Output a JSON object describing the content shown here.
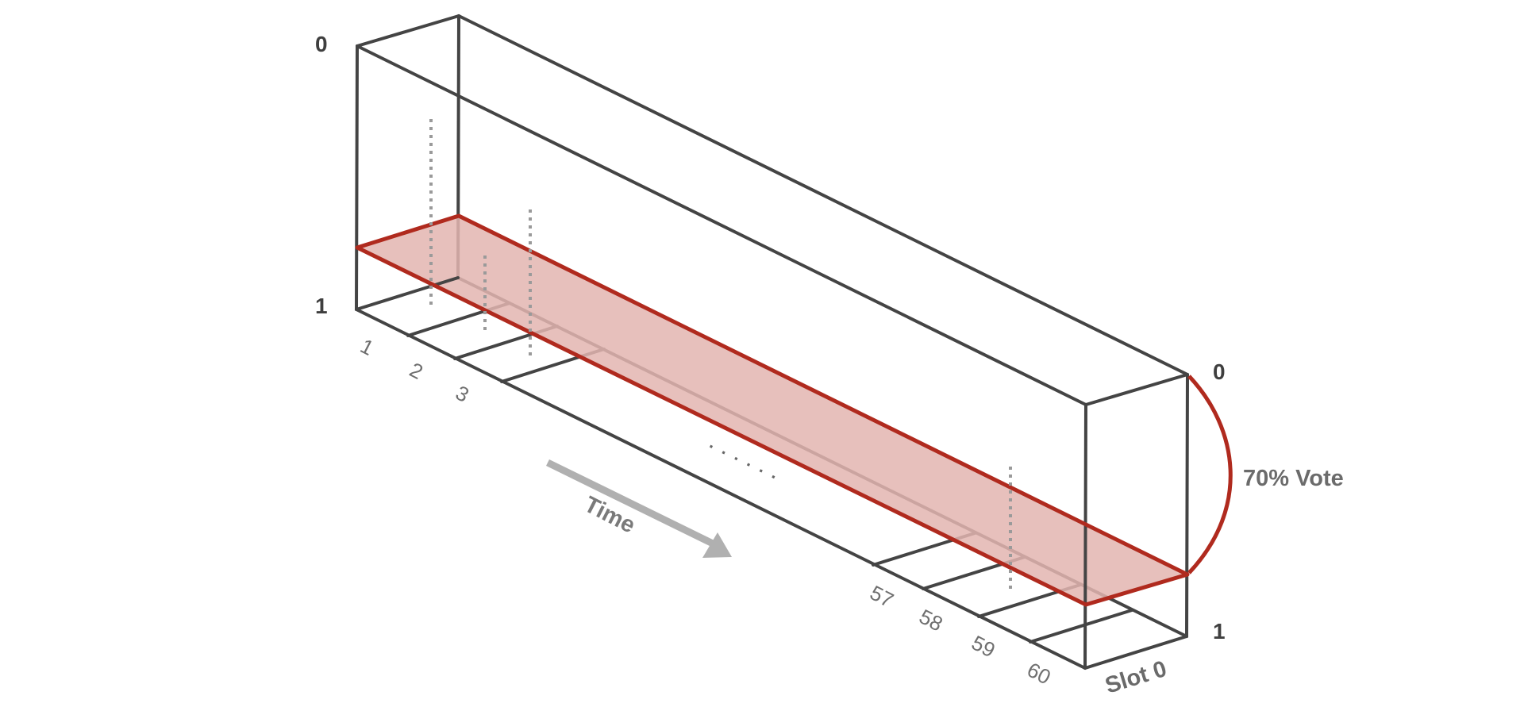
{
  "diagram": {
    "left_top_label": "0",
    "left_bottom_label": "1",
    "right_top_label": "0",
    "right_bottom_label": "1",
    "vote_label": "70% Vote",
    "time_label": "Time",
    "slot_label": "Slot 0",
    "ellipsis": "· · · · · ·",
    "slots_start": [
      "1",
      "2",
      "3"
    ],
    "slots_end": [
      "57",
      "58",
      "59",
      "60"
    ],
    "colors": {
      "edge": "#444444",
      "plane_fill": "#e3b5b0",
      "plane_edge": "#b02a1e",
      "arrow": "#b0b0b0"
    }
  }
}
